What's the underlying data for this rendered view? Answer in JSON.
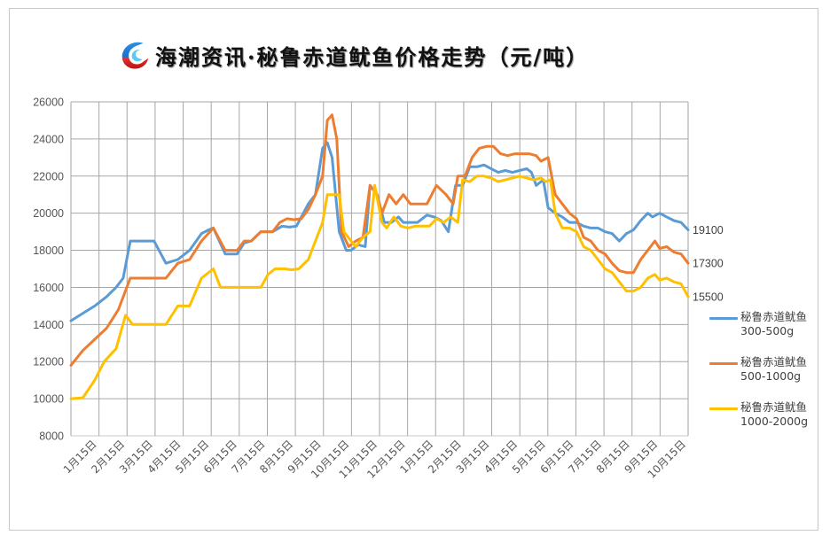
{
  "title": "海潮资讯·秘鲁赤道鱿鱼价格走势（元/吨）",
  "logo": "haichao-logo-icon",
  "chart_data": {
    "type": "line",
    "title": "海潮资讯·秘鲁赤道鱿鱼价格走势（元/吨）",
    "xlabel": "",
    "ylabel": "元/吨",
    "ylim": [
      8000,
      26000
    ],
    "yticks": [
      26000,
      24000,
      22000,
      20000,
      18000,
      16000,
      14000,
      12000,
      10000,
      8000
    ],
    "grid": true,
    "legend_position": "right",
    "categories": [
      "1月15日",
      "2月15日",
      "3月15日",
      "4月15日",
      "5月15日",
      "6月15日",
      "7月15日",
      "8月15日",
      "9月15日",
      "10月15日",
      "11月15日",
      "12月15日",
      "1月15日",
      "2月15日",
      "3月15日",
      "4月15日",
      "5月15日",
      "6月15日",
      "7月15日",
      "8月15日",
      "9月15日",
      "10月15日"
    ],
    "series": [
      {
        "name": "秘鲁赤道鱿鱼300-500g",
        "color": "#5B9BD5",
        "end_label": "19100",
        "points": [
          [
            0,
            14200
          ],
          [
            1.0,
            15000
          ],
          [
            1.5,
            15500
          ],
          [
            1.9,
            16000
          ],
          [
            2.2,
            16500
          ],
          [
            2.5,
            18500
          ],
          [
            3.0,
            18500
          ],
          [
            3.5,
            18500
          ],
          [
            4.0,
            17300
          ],
          [
            4.5,
            17500
          ],
          [
            5.0,
            18000
          ],
          [
            5.5,
            18900
          ],
          [
            5.8,
            19100
          ],
          [
            6.0,
            19200
          ],
          [
            6.5,
            17800
          ],
          [
            7.0,
            17800
          ],
          [
            7.3,
            18400
          ],
          [
            7.6,
            18500
          ],
          [
            8.0,
            19000
          ],
          [
            8.5,
            19000
          ],
          [
            8.9,
            19300
          ],
          [
            9.2,
            19250
          ],
          [
            9.5,
            19300
          ],
          [
            10.0,
            20500
          ],
          [
            10.3,
            21000
          ],
          [
            10.6,
            23500
          ],
          [
            10.8,
            23800
          ],
          [
            11.0,
            23000
          ],
          [
            11.3,
            19000
          ],
          [
            11.6,
            18000
          ],
          [
            11.8,
            18000
          ],
          [
            12.1,
            18300
          ],
          [
            12.4,
            18200
          ],
          [
            12.6,
            21500
          ],
          [
            12.9,
            21000
          ],
          [
            13.2,
            19500
          ],
          [
            13.5,
            19500
          ],
          [
            13.8,
            19800
          ],
          [
            14.0,
            19500
          ],
          [
            14.3,
            19500
          ],
          [
            14.6,
            19500
          ],
          [
            15.0,
            19900
          ],
          [
            15.3,
            19800
          ],
          [
            15.6,
            19600
          ],
          [
            15.9,
            19000
          ],
          [
            16.2,
            21500
          ],
          [
            16.5,
            21500
          ],
          [
            16.8,
            22500
          ],
          [
            17.1,
            22500
          ],
          [
            17.4,
            22600
          ],
          [
            17.7,
            22400
          ],
          [
            18.0,
            22200
          ],
          [
            18.3,
            22300
          ],
          [
            18.6,
            22200
          ],
          [
            18.9,
            22300
          ],
          [
            19.2,
            22400
          ],
          [
            19.4,
            22200
          ],
          [
            19.6,
            21500
          ],
          [
            19.9,
            21800
          ],
          [
            20.1,
            20300
          ],
          [
            20.4,
            20000
          ],
          [
            20.7,
            19800
          ],
          [
            21.0,
            19500
          ],
          [
            21.3,
            19500
          ],
          [
            21.6,
            19300
          ],
          [
            21.9,
            19200
          ],
          [
            22.2,
            19200
          ],
          [
            22.5,
            19000
          ],
          [
            22.8,
            18900
          ],
          [
            23.1,
            18500
          ],
          [
            23.4,
            18900
          ],
          [
            23.7,
            19100
          ],
          [
            24.0,
            19600
          ],
          [
            24.3,
            20000
          ],
          [
            24.5,
            19800
          ],
          [
            24.8,
            20000
          ],
          [
            25.1,
            19800
          ],
          [
            25.4,
            19600
          ],
          [
            25.7,
            19500
          ],
          [
            26.0,
            19100
          ]
        ]
      },
      {
        "name": "秘鲁赤道鱿鱼500-1000g",
        "color": "#ED7D31",
        "end_label": "17300",
        "points": [
          [
            0,
            11800
          ],
          [
            0.5,
            12600
          ],
          [
            1.0,
            13200
          ],
          [
            1.5,
            13800
          ],
          [
            2.0,
            14800
          ],
          [
            2.5,
            16500
          ],
          [
            3.0,
            16500
          ],
          [
            3.5,
            16500
          ],
          [
            4.0,
            16500
          ],
          [
            4.5,
            17300
          ],
          [
            5.0,
            17500
          ],
          [
            5.5,
            18500
          ],
          [
            6.0,
            19200
          ],
          [
            6.5,
            18000
          ],
          [
            7.0,
            18000
          ],
          [
            7.3,
            18500
          ],
          [
            7.6,
            18500
          ],
          [
            8.0,
            19000
          ],
          [
            8.5,
            19000
          ],
          [
            8.8,
            19500
          ],
          [
            9.1,
            19700
          ],
          [
            9.4,
            19650
          ],
          [
            9.7,
            19700
          ],
          [
            10.0,
            20200
          ],
          [
            10.3,
            21000
          ],
          [
            10.6,
            22000
          ],
          [
            10.8,
            25000
          ],
          [
            11.0,
            25300
          ],
          [
            11.2,
            24000
          ],
          [
            11.4,
            19000
          ],
          [
            11.7,
            18200
          ],
          [
            12.0,
            18500
          ],
          [
            12.3,
            18700
          ],
          [
            12.6,
            21500
          ],
          [
            12.9,
            21000
          ],
          [
            13.1,
            20000
          ],
          [
            13.4,
            21000
          ],
          [
            13.7,
            20500
          ],
          [
            14.0,
            21000
          ],
          [
            14.3,
            20500
          ],
          [
            14.6,
            20500
          ],
          [
            15.0,
            20500
          ],
          [
            15.4,
            21500
          ],
          [
            15.8,
            21000
          ],
          [
            16.1,
            20500
          ],
          [
            16.3,
            22000
          ],
          [
            16.6,
            22000
          ],
          [
            16.9,
            23000
          ],
          [
            17.2,
            23500
          ],
          [
            17.5,
            23600
          ],
          [
            17.8,
            23600
          ],
          [
            18.1,
            23200
          ],
          [
            18.4,
            23100
          ],
          [
            18.7,
            23200
          ],
          [
            19.0,
            23200
          ],
          [
            19.3,
            23200
          ],
          [
            19.6,
            23100
          ],
          [
            19.8,
            22800
          ],
          [
            20.1,
            23000
          ],
          [
            20.4,
            21000
          ],
          [
            20.7,
            20500
          ],
          [
            21.0,
            20000
          ],
          [
            21.3,
            19700
          ],
          [
            21.6,
            18700
          ],
          [
            21.9,
            18500
          ],
          [
            22.2,
            18000
          ],
          [
            22.5,
            17800
          ],
          [
            22.8,
            17300
          ],
          [
            23.1,
            16900
          ],
          [
            23.4,
            16800
          ],
          [
            23.7,
            16800
          ],
          [
            24.0,
            17500
          ],
          [
            24.3,
            18000
          ],
          [
            24.6,
            18500
          ],
          [
            24.8,
            18100
          ],
          [
            25.1,
            18200
          ],
          [
            25.4,
            17900
          ],
          [
            25.7,
            17800
          ],
          [
            26.0,
            17300
          ]
        ]
      },
      {
        "name": "秘鲁赤道鱿鱼1000-2000g",
        "color": "#FFC000",
        "end_label": "15500",
        "points": [
          [
            0,
            10000
          ],
          [
            0.5,
            10050
          ],
          [
            1.0,
            11000
          ],
          [
            1.4,
            12000
          ],
          [
            1.9,
            12700
          ],
          [
            2.3,
            14500
          ],
          [
            2.6,
            14000
          ],
          [
            3.0,
            14000
          ],
          [
            3.5,
            14000
          ],
          [
            4.0,
            14000
          ],
          [
            4.5,
            15000
          ],
          [
            5.0,
            15000
          ],
          [
            5.5,
            16500
          ],
          [
            6.0,
            17000
          ],
          [
            6.3,
            16000
          ],
          [
            6.7,
            16000
          ],
          [
            7.0,
            16000
          ],
          [
            7.5,
            16000
          ],
          [
            8.0,
            16000
          ],
          [
            8.3,
            16700
          ],
          [
            8.6,
            17000
          ],
          [
            9.0,
            17000
          ],
          [
            9.3,
            16950
          ],
          [
            9.6,
            17000
          ],
          [
            10.0,
            17500
          ],
          [
            10.3,
            18500
          ],
          [
            10.6,
            19500
          ],
          [
            10.8,
            21000
          ],
          [
            11.0,
            21000
          ],
          [
            11.3,
            21000
          ],
          [
            11.5,
            19000
          ],
          [
            11.8,
            18500
          ],
          [
            12.0,
            18200
          ],
          [
            12.3,
            18700
          ],
          [
            12.6,
            19000
          ],
          [
            12.8,
            21500
          ],
          [
            13.1,
            19500
          ],
          [
            13.3,
            19200
          ],
          [
            13.6,
            19800
          ],
          [
            13.9,
            19300
          ],
          [
            14.2,
            19200
          ],
          [
            14.5,
            19300
          ],
          [
            14.8,
            19300
          ],
          [
            15.1,
            19300
          ],
          [
            15.4,
            19700
          ],
          [
            15.7,
            19500
          ],
          [
            16.0,
            19800
          ],
          [
            16.3,
            19500
          ],
          [
            16.5,
            21800
          ],
          [
            16.8,
            21700
          ],
          [
            17.1,
            22000
          ],
          [
            17.4,
            22000
          ],
          [
            17.7,
            21900
          ],
          [
            18.0,
            21700
          ],
          [
            18.3,
            21800
          ],
          [
            18.6,
            21900
          ],
          [
            18.9,
            22000
          ],
          [
            19.2,
            21900
          ],
          [
            19.5,
            21800
          ],
          [
            19.8,
            21900
          ],
          [
            20.0,
            21700
          ],
          [
            20.2,
            21800
          ],
          [
            20.4,
            20000
          ],
          [
            20.7,
            19200
          ],
          [
            21.0,
            19200
          ],
          [
            21.3,
            19000
          ],
          [
            21.6,
            18200
          ],
          [
            21.9,
            18000
          ],
          [
            22.2,
            17500
          ],
          [
            22.5,
            17000
          ],
          [
            22.8,
            16800
          ],
          [
            23.1,
            16300
          ],
          [
            23.4,
            15800
          ],
          [
            23.7,
            15800
          ],
          [
            24.0,
            16000
          ],
          [
            24.3,
            16500
          ],
          [
            24.6,
            16700
          ],
          [
            24.8,
            16400
          ],
          [
            25.1,
            16500
          ],
          [
            25.4,
            16300
          ],
          [
            25.7,
            16200
          ],
          [
            26.0,
            15500
          ]
        ]
      }
    ],
    "x_domain": [
      0,
      26
    ]
  },
  "legend": {
    "items": [
      {
        "line1": "秘鲁赤道鱿鱼",
        "line2": "300-500g",
        "color": "#5B9BD5"
      },
      {
        "line1": "秘鲁赤道鱿鱼",
        "line2": "500-1000g",
        "color": "#ED7D31"
      },
      {
        "line1": "秘鲁赤道鱿鱼",
        "line2": "1000-2000g",
        "color": "#FFC000"
      }
    ]
  }
}
